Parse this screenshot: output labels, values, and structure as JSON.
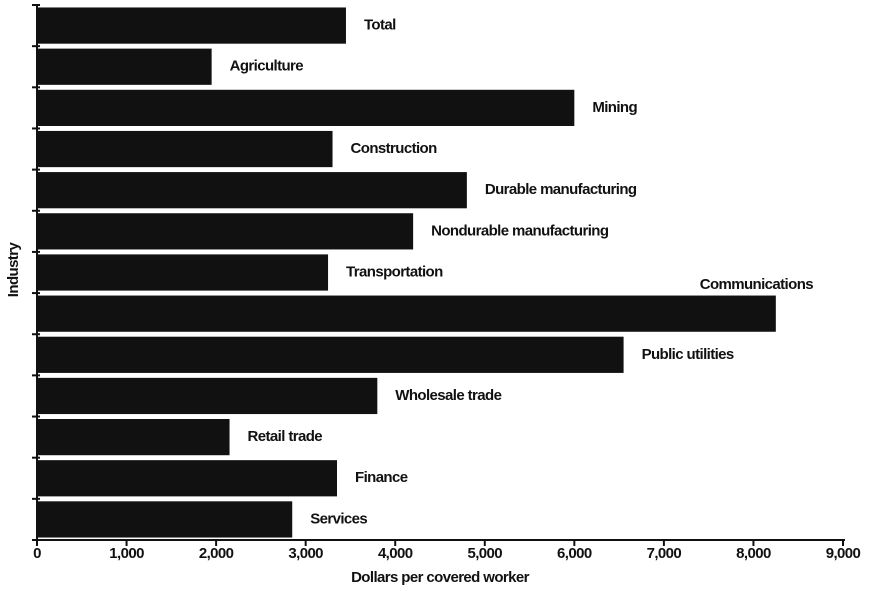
{
  "chart_data": {
    "type": "barh",
    "categories": [
      "Total",
      "Agriculture",
      "Mining",
      "Construction",
      "Durable manufacturing",
      "Nondurable manufacturing",
      "Transportation",
      "Communications",
      "Public utilities",
      "Wholesale trade",
      "Retail trade",
      "Finance",
      "Services"
    ],
    "values": [
      3450,
      1950,
      6000,
      3300,
      4800,
      4200,
      3250,
      8250,
      6550,
      3800,
      2150,
      3350,
      2850
    ],
    "color": "#111111",
    "xlim": [
      0,
      9000
    ],
    "xticks": [
      0,
      {
        "value": 1000,
        "label": "1,000"
      },
      {
        "value": 2000,
        "label": "2,000"
      },
      {
        "value": 3000,
        "label": "3,000"
      },
      {
        "value": 4000,
        "label": "4,000"
      },
      {
        "value": 5000,
        "label": "5,000"
      },
      {
        "value": 6000,
        "label": "6,000"
      },
      {
        "value": 7000,
        "label": "7,000"
      },
      {
        "value": 8000,
        "label": "8,000"
      },
      {
        "value": 9000,
        "label": "9,000"
      }
    ],
    "xlabel": "Dollars per covered worker",
    "ylabel": "Industry"
  }
}
